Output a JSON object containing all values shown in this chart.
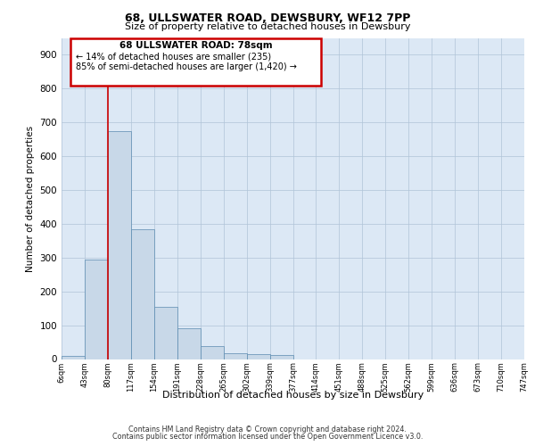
{
  "title1": "68, ULLSWATER ROAD, DEWSBURY, WF12 7PP",
  "title2": "Size of property relative to detached houses in Dewsbury",
  "xlabel": "Distribution of detached houses by size in Dewsbury",
  "ylabel": "Number of detached properties",
  "footer1": "Contains HM Land Registry data © Crown copyright and database right 2024.",
  "footer2": "Contains public sector information licensed under the Open Government Licence v3.0.",
  "annotation_line1": "68 ULLSWATER ROAD: 78sqm",
  "annotation_line2": "← 14% of detached houses are smaller (235)",
  "annotation_line3": "85% of semi-detached houses are larger (1,420) →",
  "bar_values": [
    10,
    295,
    675,
    385,
    155,
    92,
    38,
    16,
    15,
    11,
    0,
    0,
    0,
    0,
    0,
    0,
    0,
    0,
    0,
    0
  ],
  "bar_color": "#c8d8e8",
  "bar_edge_color": "#5a8ab0",
  "categories": [
    "6sqm",
    "43sqm",
    "80sqm",
    "117sqm",
    "154sqm",
    "191sqm",
    "228sqm",
    "265sqm",
    "302sqm",
    "339sqm",
    "377sqm",
    "414sqm",
    "451sqm",
    "488sqm",
    "525sqm",
    "562sqm",
    "599sqm",
    "636sqm",
    "673sqm",
    "710sqm",
    "747sqm"
  ],
  "ylim": [
    0,
    950
  ],
  "yticks": [
    0,
    100,
    200,
    300,
    400,
    500,
    600,
    700,
    800,
    900
  ],
  "red_line_x": 2,
  "background_color": "#dce8f5",
  "grid_color": "#b0c4d8",
  "red_line_color": "#cc0000",
  "ann_box_facecolor": "#ffffff"
}
